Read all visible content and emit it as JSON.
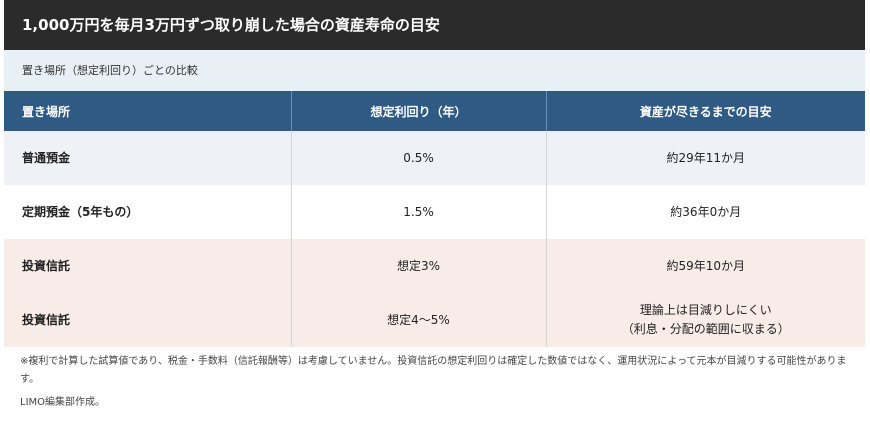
{
  "title": "1,000万円を毎月3万円ずつ取り崩した場合の資産寿命の目安",
  "subtitle": "置き場所（想定利回り）ごとの比較",
  "table": {
    "headers": [
      "置き場所",
      "想定利回り（年）",
      "資産が尽きるまでの目安"
    ],
    "rows": [
      {
        "place": "普通預金",
        "rate": "0.5%",
        "lifespan": "約29年11か月",
        "lifespan2": ""
      },
      {
        "place": "定期預金（5年もの）",
        "rate": "1.5%",
        "lifespan": "約36年0か月",
        "lifespan2": ""
      },
      {
        "place": "投資信託",
        "rate": "想定3%",
        "lifespan": "約59年10か月",
        "lifespan2": ""
      },
      {
        "place": "投資信託",
        "rate": "想定4〜5%",
        "lifespan": "理論上は目減りしにくい",
        "lifespan2": "（利息・分配の範囲に収まる）"
      }
    ]
  },
  "note": "※複利で計算した試算値であり、税金・手数料（信託報酬等）は考慮していません。投資信託の想定利回りは確定した数値ではなく、運用状況によって元本が目減りする可能性があります。",
  "source": "LIMO編集部作成。"
}
